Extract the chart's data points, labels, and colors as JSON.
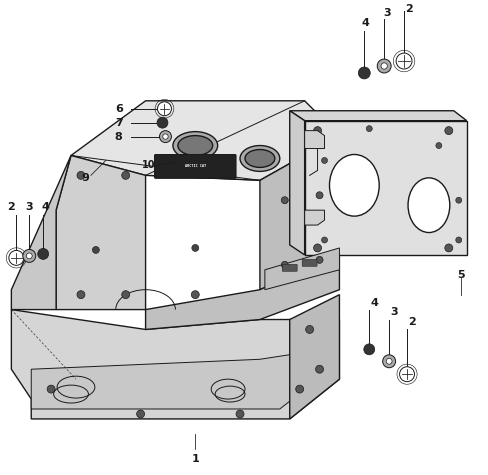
{
  "bg_color": "#ffffff",
  "line_color": "#1a1a1a",
  "figure_width": 4.88,
  "figure_height": 4.75,
  "dpi": 100,
  "xlim": [
    0,
    488
  ],
  "ylim": [
    0,
    475
  ]
}
